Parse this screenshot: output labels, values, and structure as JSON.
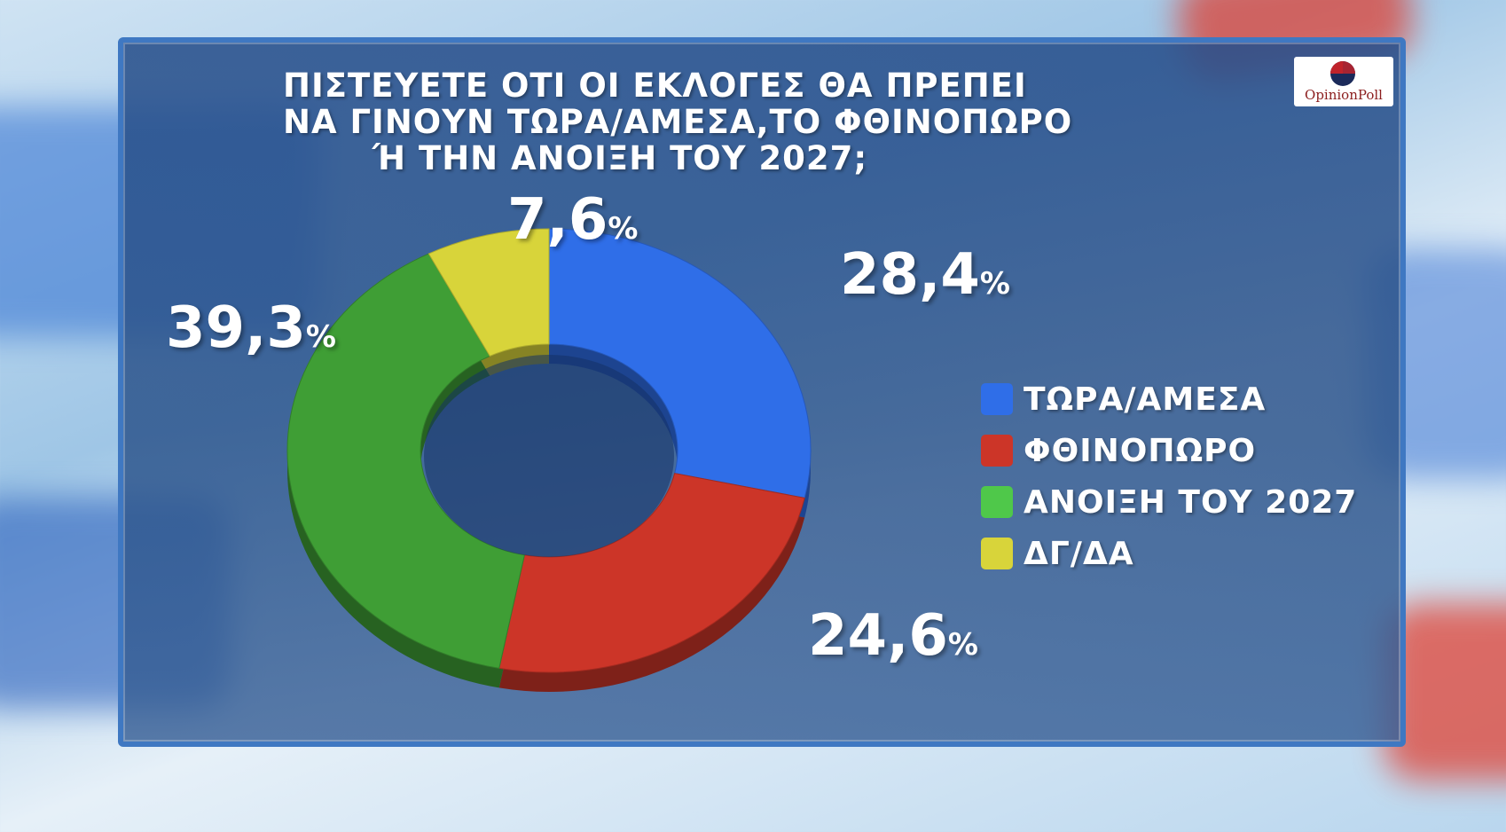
{
  "chart_data": {
    "type": "pie",
    "title_lines": [
      "ΠΙΣΤΕΥΕΤΕ ΟΤΙ ΟΙ ΕΚΛΟΓΕΣ ΘΑ ΠΡΕΠΕΙ",
      "ΝΑ ΓΙΝΟΥΝ ΤΩΡΑ/ΑΜΕΣΑ,ΤΟ ΦΘΙΝΟΠΩΡΟ",
      "Ή ΤΗΝ ΑΝΟΙΞΗ ΤΟΥ 2027;"
    ],
    "slices": [
      {
        "label": "ΤΩΡΑ/ΑΜΕΣΑ",
        "value": 28.4,
        "value_text": "28,4",
        "color": "#2f6ee8"
      },
      {
        "label": "ΦΘΙΝΟΠΩΡΟ",
        "value": 24.6,
        "value_text": "24,6",
        "color": "#cc3528"
      },
      {
        "label": "ΑΝΟΙΞΗ ΤΟΥ 2027",
        "value": 39.3,
        "value_text": "39,3",
        "color": "#3f9e35"
      },
      {
        "label": "ΔΓ/ΔΑ",
        "value": 7.6,
        "value_text": "7,6",
        "color": "#d8d43a"
      }
    ],
    "unit": "%",
    "legend_placement": "right",
    "style": "donut"
  },
  "logo": {
    "text": "OpinionPoll",
    "mark_colors": [
      "#c0232b",
      "#1b2a5a"
    ]
  }
}
